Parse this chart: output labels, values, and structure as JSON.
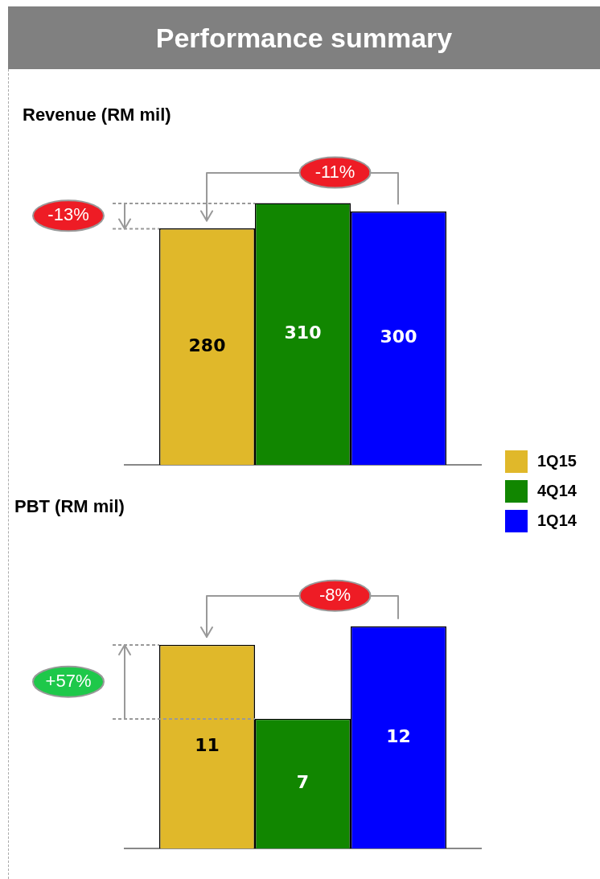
{
  "chart_data": [
    {
      "type": "bar",
      "title": "Performance summary",
      "subtitle": "Revenue (RM mil)",
      "categories": [
        null
      ],
      "series": [
        {
          "name": "1Q15",
          "color": "#e0b82a",
          "values": [
            280
          ]
        },
        {
          "name": "4Q14",
          "color": "#118600",
          "values": [
            310
          ]
        },
        {
          "name": "1Q14",
          "color": "#0000ff",
          "values": [
            300
          ]
        }
      ],
      "data_labels": true,
      "legend": "bottom right",
      "annotations": [
        "-11%",
        "-13%"
      ]
    },
    {
      "type": "bar",
      "title": "PBT (RM mil)",
      "categories": [
        null
      ],
      "series": [
        {
          "color": "#e0b82a",
          "values": [
            11
          ]
        },
        {
          "color": "#118600",
          "values": [
            7
          ]
        },
        {
          "color": "#0000ff",
          "values": [
            12
          ]
        }
      ],
      "data_labels": true,
      "annotations": [
        "-8%",
        "+57%"
      ]
    }
  ]
}
